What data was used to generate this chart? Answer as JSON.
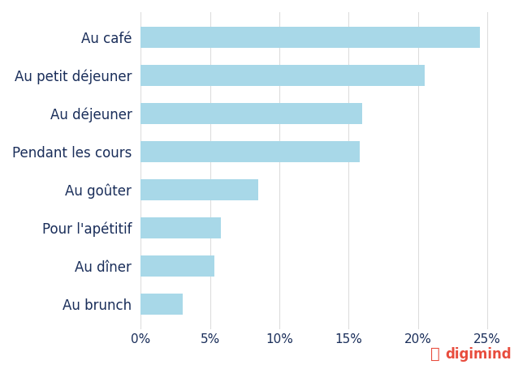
{
  "categories": [
    "Au café",
    "Au petit déjeuner",
    "Au déjeuner",
    "Pendant les cours",
    "Au goûter",
    "Pour l'apétitif",
    "Au dîner",
    "Au brunch"
  ],
  "values": [
    24.5,
    20.5,
    16.0,
    15.8,
    8.5,
    5.8,
    5.3,
    3.0
  ],
  "bar_color": "#a8d8e8",
  "text_color": "#1a2e5a",
  "background_color": "#ffffff",
  "grid_color": "#dddddd",
  "xlim": [
    0,
    27
  ],
  "xticks": [
    0,
    5,
    10,
    15,
    20,
    25
  ],
  "xtick_labels": [
    "0%",
    "5%",
    "10%",
    "15%",
    "20%",
    "25%"
  ],
  "label_fontsize": 12,
  "tick_fontsize": 11,
  "bar_height": 0.55,
  "digimind_text": "digimind",
  "digimind_color": "#e84c3d"
}
